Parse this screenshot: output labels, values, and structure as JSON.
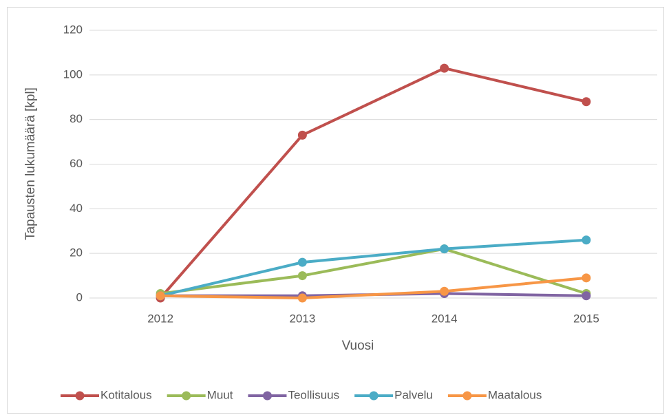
{
  "chart_data": {
    "type": "line",
    "categories": [
      "2012",
      "2013",
      "2014",
      "2015"
    ],
    "series": [
      {
        "name": "Kotitalous",
        "color": "#c0504d",
        "values": [
          0,
          73,
          103,
          88
        ]
      },
      {
        "name": "Muut",
        "color": "#9bbb59",
        "values": [
          2,
          10,
          22,
          2
        ]
      },
      {
        "name": "Teollisuus",
        "color": "#8064a2",
        "values": [
          1,
          1,
          2,
          1
        ]
      },
      {
        "name": "Palvelu",
        "color": "#4bacc6",
        "values": [
          1,
          16,
          22,
          26
        ]
      },
      {
        "name": "Maatalous",
        "color": "#f79646",
        "values": [
          1,
          0,
          3,
          9
        ]
      }
    ],
    "ylim": [
      0,
      120
    ],
    "yticks": [
      0,
      20,
      40,
      60,
      80,
      100,
      120
    ],
    "grid": true,
    "xlabel": "Vuosi",
    "ylabel": "Tapausten lukumäärä [kpl]",
    "legend": "bottom"
  }
}
